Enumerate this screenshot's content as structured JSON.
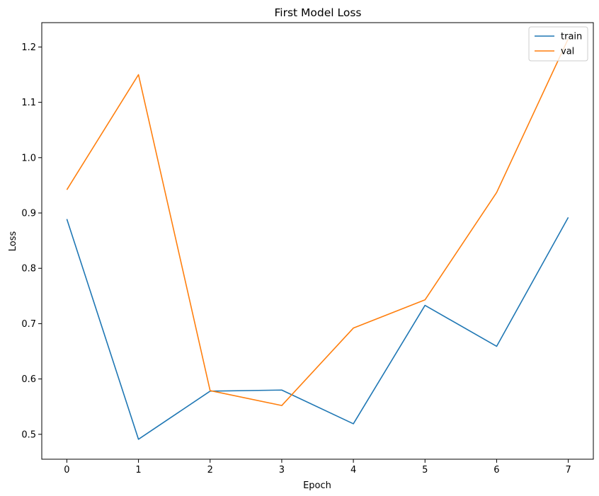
{
  "chart_data": {
    "type": "line",
    "title": "First Model Loss",
    "xlabel": "Epoch",
    "ylabel": "Loss",
    "x": [
      0,
      1,
      2,
      3,
      4,
      5,
      6,
      7
    ],
    "xticks": [
      "0",
      "1",
      "2",
      "3",
      "4",
      "5",
      "6",
      "7"
    ],
    "yticks": [
      "0.5",
      "0.6",
      "0.7",
      "0.8",
      "0.9",
      "1.0",
      "1.1",
      "1.2"
    ],
    "ytick_values": [
      0.5,
      0.6,
      0.7,
      0.8,
      0.9,
      1.0,
      1.1,
      1.2
    ],
    "xlim": [
      -0.35,
      7.35
    ],
    "ylim": [
      0.455,
      1.244
    ],
    "grid": false,
    "legend_position": "upper right",
    "series": [
      {
        "name": "train",
        "color": "#1f77b4",
        "values": [
          0.889,
          0.491,
          0.578,
          0.58,
          0.519,
          0.733,
          0.659,
          0.892
        ]
      },
      {
        "name": "val",
        "color": "#ff7f0e",
        "values": [
          0.942,
          1.15,
          0.579,
          0.552,
          0.692,
          0.743,
          0.937,
          1.215
        ]
      }
    ]
  }
}
